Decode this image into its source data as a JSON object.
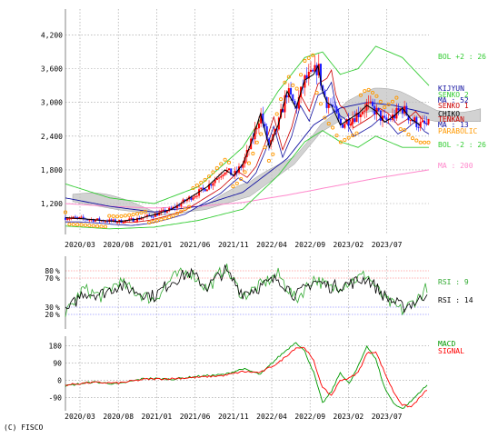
{
  "copyright": "(C) FISCO",
  "colors": {
    "price_line": "#000000",
    "candle_up": "#ff0000",
    "candle_down": "#1a1aff",
    "cloud_fill": "#bfbfbf",
    "bollinger": "#33cc33",
    "ma200": "#ff88cc",
    "kijun": "#1010a0",
    "tenkan": "#cc0000",
    "parabolic": "#ff9900",
    "rsi9": "#33aa33",
    "rsi14": "#000000",
    "macd": "#009900",
    "signal": "#ff0000",
    "ref_red": "#ff6666",
    "ref_blue": "#6666ff"
  },
  "chart_data": [
    {
      "type": "line",
      "panel": "price",
      "x_ticks": [
        "2020/03",
        "2020/08",
        "2021/01",
        "2021/06",
        "2021/11",
        "2022/04",
        "2022/09",
        "2023/02",
        "2023/07"
      ],
      "y_ticks": [
        "1,200",
        "1,800",
        "2,400",
        "3,000",
        "3,600",
        "4,200"
      ],
      "y_tick_values": [
        1200,
        1800,
        2400,
        3000,
        3600,
        4200
      ],
      "ylim": [
        650,
        4500
      ],
      "grid": true,
      "legend": [
        {
          "label": "BOL +2 : 26",
          "color": "#33cc33"
        },
        {
          "label": "KIJYUN",
          "color": "#1010a0"
        },
        {
          "label": "SENKO 2",
          "color": "#33cc33"
        },
        {
          "label": "MA : 52",
          "color": "#1010a0"
        },
        {
          "label": "SENKO 1",
          "color": "#cc0000"
        },
        {
          "label": "CHIKO",
          "color": "#000000"
        },
        {
          "label": "TENKAN",
          "color": "#cc0000"
        },
        {
          "label": "MA : 13",
          "color": "#1010a0"
        },
        {
          "label": "PARABOLIC",
          "color": "#ff9900"
        },
        {
          "label": "BOL -2 : 26",
          "color": "#33cc33"
        },
        {
          "label": "MA : 200",
          "color": "#ff88cc"
        }
      ],
      "series": [
        {
          "name": "CHIKO",
          "x": [
            0,
            4,
            8,
            12,
            16,
            20,
            24,
            28,
            32,
            36,
            38,
            40,
            42,
            44,
            46,
            48,
            50,
            52,
            54,
            56,
            57,
            58,
            59,
            60,
            62,
            64,
            66,
            68,
            70,
            72,
            74,
            76,
            78,
            80
          ],
          "values": [
            950,
            930,
            900,
            880,
            920,
            1000,
            1100,
            1300,
            1500,
            1800,
            1700,
            1900,
            2300,
            2800,
            2200,
            2600,
            3200,
            2900,
            3400,
            3500,
            3650,
            3200,
            3000,
            2950,
            2600,
            2700,
            2800,
            2950,
            2850,
            2650,
            2750,
            2900,
            2700,
            2600
          ]
        },
        {
          "name": "MA : 200",
          "x": [
            0,
            10,
            20,
            30,
            40,
            50,
            60,
            70,
            82
          ],
          "values": [
            1200,
            1150,
            1120,
            1150,
            1220,
            1350,
            1500,
            1650,
            1800
          ]
        },
        {
          "name": "MA : 52",
          "x": [
            0,
            10,
            20,
            30,
            40,
            50,
            56,
            62,
            68,
            74,
            82
          ],
          "values": [
            1300,
            1150,
            1050,
            1150,
            1400,
            2000,
            2600,
            2900,
            3000,
            2950,
            2800
          ]
        },
        {
          "name": "BOL +2 : 26",
          "x": [
            0,
            10,
            20,
            30,
            40,
            48,
            54,
            58,
            62,
            66,
            70,
            76,
            82
          ],
          "values": [
            1550,
            1300,
            1200,
            1500,
            2200,
            3200,
            3800,
            3900,
            3500,
            3600,
            4000,
            3800,
            3300
          ]
        },
        {
          "name": "BOL -2 : 26",
          "x": [
            0,
            10,
            20,
            30,
            40,
            48,
            54,
            58,
            62,
            66,
            70,
            76,
            82
          ],
          "values": [
            800,
            750,
            780,
            900,
            1100,
            1700,
            2300,
            2500,
            2300,
            2200,
            2400,
            2200,
            2200
          ]
        }
      ]
    },
    {
      "type": "line",
      "panel": "rsi",
      "y_ticks_left": [
        "80",
        "70",
        "30",
        "20"
      ],
      "ylim": [
        0,
        100
      ],
      "reference_lines": [
        80,
        70,
        30,
        20
      ],
      "legend": [
        {
          "label": "RSI : 9",
          "color": "#33aa33"
        },
        {
          "label": "RSI : 14",
          "color": "#000000"
        }
      ],
      "series": [
        {
          "name": "RSI : 9",
          "x": [
            0,
            4,
            8,
            12,
            16,
            20,
            24,
            28,
            32,
            36,
            40,
            44,
            48,
            52,
            56,
            60,
            64,
            68,
            72,
            76,
            80,
            82
          ],
          "values": [
            20,
            55,
            45,
            65,
            50,
            40,
            70,
            80,
            55,
            85,
            45,
            60,
            75,
            40,
            70,
            55,
            65,
            75,
            40,
            25,
            45,
            62
          ]
        },
        {
          "name": "RSI : 14",
          "x": [
            0,
            4,
            8,
            12,
            16,
            20,
            24,
            28,
            32,
            36,
            40,
            44,
            48,
            52,
            56,
            60,
            64,
            68,
            72,
            76,
            80,
            82
          ],
          "values": [
            22,
            50,
            48,
            60,
            52,
            45,
            66,
            77,
            58,
            80,
            50,
            58,
            70,
            45,
            66,
            58,
            62,
            70,
            45,
            30,
            40,
            55
          ]
        }
      ]
    },
    {
      "type": "line",
      "panel": "macd",
      "y_ticks": [
        "180",
        "90",
        "0",
        "-90"
      ],
      "y_tick_values": [
        180,
        90,
        0,
        -90
      ],
      "ylim": [
        -160,
        230
      ],
      "legend": [
        {
          "label": "MACD",
          "color": "#009900"
        },
        {
          "label": "SIGNAL",
          "color": "#ff0000"
        }
      ],
      "series": [
        {
          "name": "MACD",
          "x": [
            0,
            6,
            12,
            18,
            24,
            30,
            36,
            40,
            44,
            48,
            52,
            54,
            56,
            58,
            60,
            62,
            64,
            66,
            68,
            70,
            72,
            74,
            76,
            78,
            80,
            82
          ],
          "values": [
            -30,
            -10,
            -20,
            10,
            5,
            20,
            30,
            60,
            30,
            120,
            200,
            150,
            40,
            -120,
            -60,
            40,
            -20,
            70,
            180,
            110,
            -40,
            -120,
            -150,
            -110,
            -60,
            -20
          ]
        },
        {
          "name": "SIGNAL",
          "x": [
            0,
            6,
            12,
            18,
            24,
            30,
            36,
            40,
            44,
            48,
            52,
            54,
            56,
            58,
            60,
            62,
            64,
            66,
            68,
            70,
            72,
            74,
            76,
            78,
            80,
            82
          ],
          "values": [
            -25,
            -12,
            -15,
            5,
            8,
            15,
            25,
            45,
            40,
            90,
            170,
            170,
            100,
            -40,
            -80,
            0,
            10,
            40,
            140,
            150,
            40,
            -60,
            -130,
            -140,
            -90,
            -40
          ]
        }
      ]
    }
  ]
}
